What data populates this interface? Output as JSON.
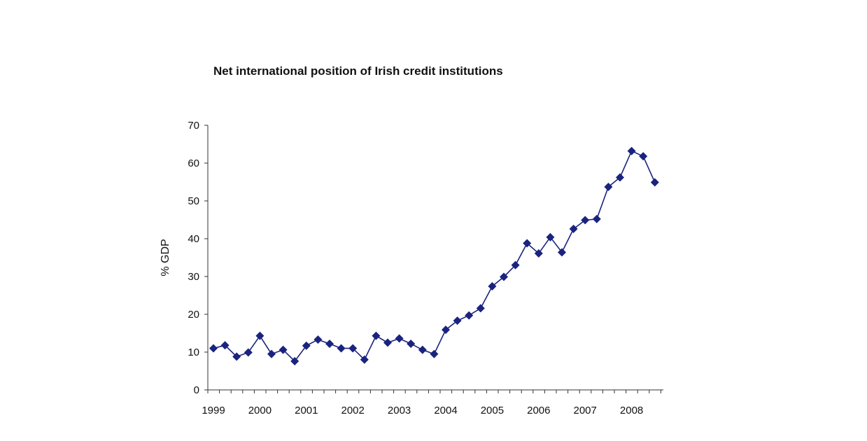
{
  "chart_data": {
    "type": "line",
    "title": "Net international position of Irish credit institutions",
    "xlabel": "",
    "ylabel": "% GDP",
    "ylim": [
      0,
      70
    ],
    "y_ticks": [
      0,
      10,
      20,
      30,
      40,
      50,
      60,
      70
    ],
    "x_tick_labels": [
      "1999",
      "2000",
      "2001",
      "2002",
      "2003",
      "2004",
      "2005",
      "2006",
      "2007",
      "2008"
    ],
    "x_frequency": "quarterly",
    "grid": false,
    "legend": "none",
    "series": [
      {
        "color": "#1a237e",
        "marker": "diamond",
        "x": [
          "1999 Q1",
          "1999 Q2",
          "1999 Q3",
          "1999 Q4",
          "2000 Q1",
          "2000 Q2",
          "2000 Q3",
          "2000 Q4",
          "2001 Q1",
          "2001 Q2",
          "2001 Q3",
          "2001 Q4",
          "2002 Q1",
          "2002 Q2",
          "2002 Q3",
          "2002 Q4",
          "2003 Q1",
          "2003 Q2",
          "2003 Q3",
          "2003 Q4",
          "2004 Q1",
          "2004 Q2",
          "2004 Q3",
          "2004 Q4",
          "2005 Q1",
          "2005 Q2",
          "2005 Q3",
          "2005 Q4",
          "2006 Q1",
          "2006 Q2",
          "2006 Q3",
          "2006 Q4",
          "2007 Q1",
          "2007 Q2",
          "2007 Q3",
          "2007 Q4",
          "2008 Q1",
          "2008 Q2",
          "2008 Q3"
        ],
        "values": [
          11.0,
          11.8,
          8.8,
          9.9,
          14.3,
          9.5,
          10.6,
          7.6,
          11.7,
          13.3,
          12.2,
          11.0,
          11.0,
          8.0,
          14.3,
          12.5,
          13.6,
          12.2,
          10.6,
          9.5,
          15.9,
          18.3,
          19.7,
          21.6,
          27.4,
          29.9,
          33.0,
          38.8,
          36.1,
          40.4,
          36.4,
          42.6,
          44.9,
          45.2,
          53.7,
          56.2,
          63.2,
          61.8,
          54.9
        ]
      }
    ]
  }
}
